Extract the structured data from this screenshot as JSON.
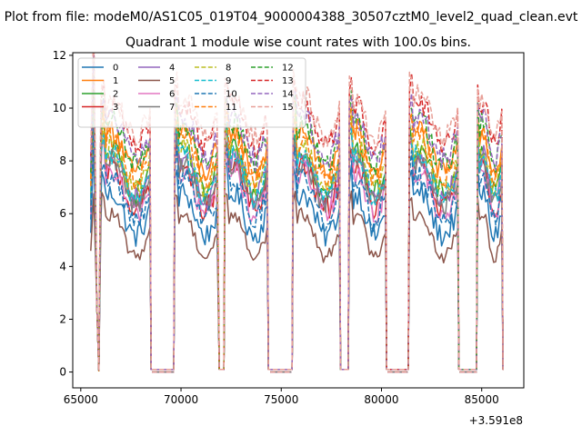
{
  "chart_data": {
    "type": "line",
    "suptitle": "Plot from file: modeM0/AS1C05_019T04_9000004388_30507cztM0_level2_quad_clean.evt",
    "title": "Quadrant 1 module wise count rates with 100.0s bins.",
    "xlabel": "",
    "ylabel": "",
    "x_offset_label": "+3.591e8",
    "xlim": [
      64600,
      87100
    ],
    "ylim": [
      -0.6,
      12.1
    ],
    "xticks": [
      65000,
      70000,
      75000,
      80000,
      85000
    ],
    "xtick_labels": [
      "65000",
      "70000",
      "75000",
      "80000",
      "85000"
    ],
    "yticks": [
      0,
      2,
      4,
      6,
      8,
      10,
      12
    ],
    "ytick_labels": [
      "0",
      "2",
      "4",
      "6",
      "8",
      "10",
      "12"
    ],
    "grid": false,
    "legend_position": "top-left",
    "legend_ncol": 4,
    "orbit_segments": [
      {
        "start": 65500,
        "end": 65850,
        "shape": "rise"
      },
      {
        "start": 65850,
        "end": 65950,
        "shape": "dip"
      },
      {
        "start": 66050,
        "end": 68450,
        "shape": "flat"
      },
      {
        "start": 69700,
        "end": 71850,
        "shape": "flat"
      },
      {
        "start": 72200,
        "end": 74300,
        "shape": "flat"
      },
      {
        "start": 75600,
        "end": 77900,
        "shape": "flat"
      },
      {
        "start": 78400,
        "end": 80200,
        "shape": "flat"
      },
      {
        "start": 81400,
        "end": 83800,
        "shape": "flat"
      },
      {
        "start": 84800,
        "end": 86000,
        "shape": "flat"
      }
    ],
    "zero_gaps": [
      [
        68550,
        69650
      ],
      [
        74450,
        75500
      ],
      [
        80300,
        81300
      ],
      [
        83900,
        84750
      ]
    ],
    "series": [
      {
        "name": "0",
        "color": "#1f77b4",
        "dash": "solid",
        "level": 6.2
      },
      {
        "name": "1",
        "color": "#ff7f0e",
        "dash": "solid",
        "level": 8.6
      },
      {
        "name": "2",
        "color": "#2ca02c",
        "dash": "solid",
        "level": 7.8
      },
      {
        "name": "3",
        "color": "#d62728",
        "dash": "solid",
        "level": 7.2
      },
      {
        "name": "4",
        "color": "#9467bd",
        "dash": "solid",
        "level": 7.6
      },
      {
        "name": "5",
        "color": "#8c564b",
        "dash": "solid",
        "level": 5.4
      },
      {
        "name": "6",
        "color": "#e377c2",
        "dash": "solid",
        "level": 7.0
      },
      {
        "name": "7",
        "color": "#7f7f7f",
        "dash": "solid",
        "level": 7.4
      },
      {
        "name": "8",
        "color": "#bcbd22",
        "dash": "dashed",
        "level": 8.0
      },
      {
        "name": "9",
        "color": "#17becf",
        "dash": "dashed",
        "level": 7.7
      },
      {
        "name": "10",
        "color": "#1f77b4",
        "dash": "dashed",
        "level": 6.8
      },
      {
        "name": "11",
        "color": "#ff7f0e",
        "dash": "dashed",
        "level": 8.3
      },
      {
        "name": "12",
        "color": "#2ca02c",
        "dash": "dashed",
        "level": 8.9
      },
      {
        "name": "13",
        "color": "#d62728",
        "dash": "dashed",
        "level": 9.6
      },
      {
        "name": "14",
        "color": "#9467bd",
        "dash": "dashed",
        "level": 9.1
      },
      {
        "name": "15",
        "color": "#e8a098",
        "dash": "dashed",
        "level": 9.9
      }
    ]
  }
}
